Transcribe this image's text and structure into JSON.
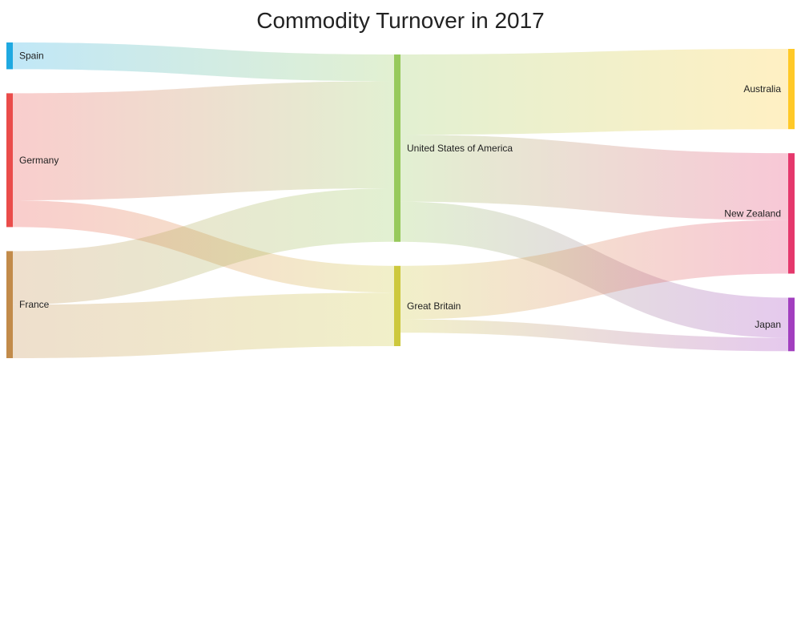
{
  "chart_data": {
    "type": "sankey",
    "title": "Commodity Turnover in 2017",
    "nodes": [
      {
        "id": "spain",
        "name": "Spain",
        "column": 0,
        "color": "#1fa9e1"
      },
      {
        "id": "germany",
        "name": "Germany",
        "column": 0,
        "color": "#ea4c4a"
      },
      {
        "id": "france",
        "name": "France",
        "column": 0,
        "color": "#c28b4a"
      },
      {
        "id": "usa",
        "name": "United States of America",
        "column": 1,
        "color": "#97c95c"
      },
      {
        "id": "gb",
        "name": "Great Britain",
        "column": 1,
        "color": "#cdc83d"
      },
      {
        "id": "australia",
        "name": "Australia",
        "column": 2,
        "color": "#ffc928"
      },
      {
        "id": "nz",
        "name": "New Zealand",
        "column": 2,
        "color": "#e5386c"
      },
      {
        "id": "japan",
        "name": "Japan",
        "column": 2,
        "color": "#a23fbf"
      }
    ],
    "links": [
      {
        "source": "spain",
        "target": "usa",
        "value": 1
      },
      {
        "source": "germany",
        "target": "usa",
        "value": 4
      },
      {
        "source": "germany",
        "target": "gb",
        "value": 1
      },
      {
        "source": "france",
        "target": "usa",
        "value": 2
      },
      {
        "source": "france",
        "target": "gb",
        "value": 2
      },
      {
        "source": "usa",
        "target": "australia",
        "value": 3
      },
      {
        "source": "usa",
        "target": "nz",
        "value": 2.5
      },
      {
        "source": "usa",
        "target": "japan",
        "value": 1.5
      },
      {
        "source": "gb",
        "target": "nz",
        "value": 2
      },
      {
        "source": "gb",
        "target": "japan",
        "value": 0.5
      }
    ]
  }
}
